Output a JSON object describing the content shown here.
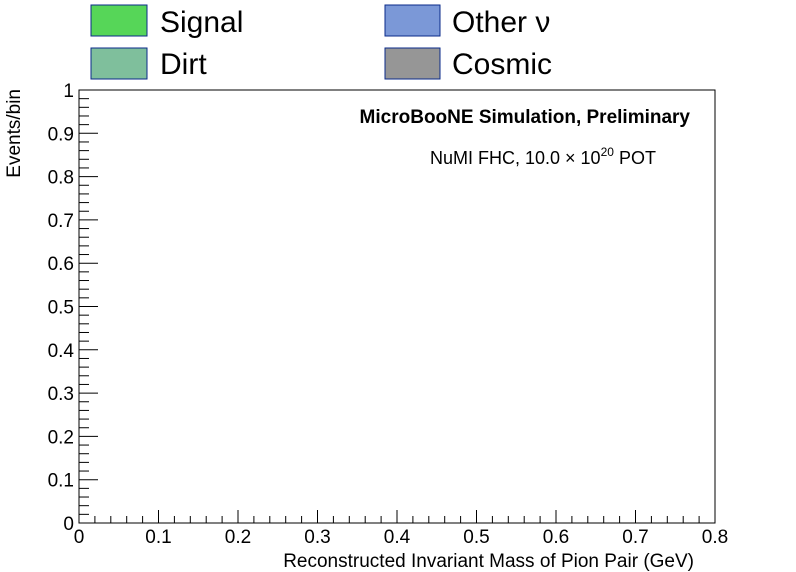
{
  "chart_data": {
    "type": "bar",
    "title": "",
    "xlabel": "Reconstructed Invariant Mass of Pion Pair (GeV)",
    "ylabel": "Events/bin",
    "xlim": [
      0,
      0.8
    ],
    "ylim": [
      0,
      1
    ],
    "x_ticks": [
      "0",
      "0.1",
      "0.2",
      "0.3",
      "0.4",
      "0.5",
      "0.6",
      "0.7",
      "0.8"
    ],
    "y_ticks": [
      "0",
      "0.1",
      "0.2",
      "0.3",
      "0.4",
      "0.5",
      "0.6",
      "0.7",
      "0.8",
      "0.9",
      "1"
    ],
    "series": [
      {
        "name": "Signal",
        "color": "#56d658",
        "values": []
      },
      {
        "name": "Other ν",
        "color": "#7b98d7",
        "values": []
      },
      {
        "name": "Dirt",
        "color": "#7fbf9c",
        "values": []
      },
      {
        "name": "Cosmic",
        "color": "#969696",
        "values": []
      }
    ],
    "legend": "top",
    "grid": false,
    "annotations": {
      "experiment": "MicroBooNE Simulation, Preliminary",
      "pot_prefix": "NuMI FHC, 10.0  × 10",
      "pot_exponent": "20",
      "pot_suffix": " POT"
    }
  }
}
